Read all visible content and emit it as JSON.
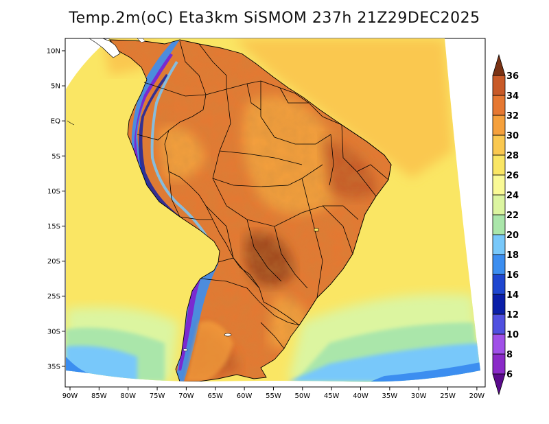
{
  "map": {
    "title": "Temp.2m(oC) Eta3km SiSMOM 237h 21Z29DEC2025",
    "variable": "2 m air temperature",
    "units": "oC",
    "region": "South America",
    "longitude_ticks": [
      "90W",
      "85W",
      "80W",
      "75W",
      "70W",
      "65W",
      "60W",
      "55W",
      "50W",
      "45W",
      "40W",
      "35W",
      "30W",
      "25W",
      "20W"
    ],
    "latitude_ticks": [
      "10N",
      "5N",
      "EQ",
      "5S",
      "10S",
      "15S",
      "20S",
      "25S",
      "30S",
      "35S"
    ],
    "colorbar": {
      "levels": [
        "6",
        "8",
        "10",
        "12",
        "14",
        "16",
        "18",
        "20",
        "22",
        "24",
        "26",
        "28",
        "30",
        "32",
        "34",
        "36"
      ],
      "colors": [
        "#5a0a8c",
        "#8a2ac8",
        "#a050e8",
        "#5050e0",
        "#0a1ea8",
        "#1e46d0",
        "#3c8ef0",
        "#78c8fa",
        "#aae6aa",
        "#dcf5a0",
        "#fafa96",
        "#fae664",
        "#fac850",
        "#f5a03c",
        "#e67832",
        "#c85a28",
        "#a0461e",
        "#7a3214"
      ]
    }
  }
}
